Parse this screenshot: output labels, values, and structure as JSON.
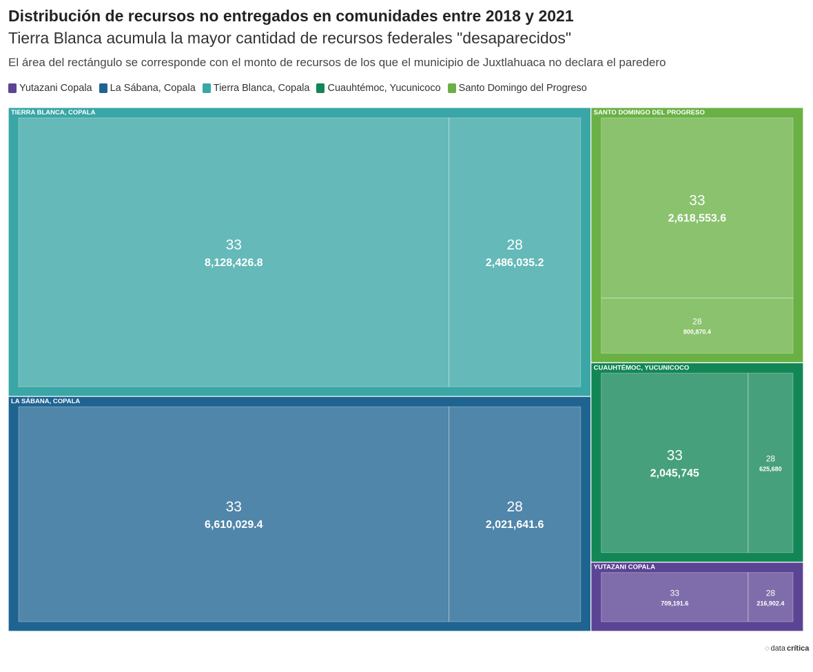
{
  "header": {
    "title": "Distribución de recursos no entregados en comunidades entre 2018 y 2021",
    "subtitle": "Tierra Blanca acumula la mayor cantidad de recursos federales \"desaparecidos\"",
    "description": "El área del rectángulo se corresponde con el monto de recursos de los que el municipio de Juxtlahuaca no declara el paredero"
  },
  "legend": [
    {
      "label": "Yutazani Copala",
      "color": "#5c4494"
    },
    {
      "label": "La Sábana, Copala",
      "color": "#1f6491"
    },
    {
      "label": "Tierra Blanca, Copala",
      "color": "#3aa6a6"
    },
    {
      "label": "Cuauhtémoc, Yucunicoco",
      "color": "#138656"
    },
    {
      "label": "Santo Domingo del Progreso",
      "color": "#6ab145"
    }
  ],
  "chart_data": {
    "type": "treemap",
    "groups": [
      {
        "name": "TIERRA BLANCA, COPALA",
        "color": "#3aa6a6",
        "items": [
          {
            "label": "33",
            "value": 8128426.8,
            "display": "8,128,426.8"
          },
          {
            "label": "28",
            "value": 2486035.2,
            "display": "2,486,035.2"
          }
        ]
      },
      {
        "name": "LA SÁBANA, COPALA",
        "color": "#1f6491",
        "items": [
          {
            "label": "33",
            "value": 6610029.4,
            "display": "6,610,029.4"
          },
          {
            "label": "28",
            "value": 2021641.6,
            "display": "2,021,641.6"
          }
        ]
      },
      {
        "name": "SANTO DOMINGO DEL PROGRESO",
        "color": "#6ab145",
        "items": [
          {
            "label": "33",
            "value": 2618553.6,
            "display": "2,618,553.6"
          },
          {
            "label": "28",
            "value": 800870.4,
            "display": "800,870.4"
          }
        ]
      },
      {
        "name": "CUAUHTÉMOC, YUCUNICOCO",
        "color": "#138656",
        "items": [
          {
            "label": "33",
            "value": 2045745,
            "display": "2,045,745"
          },
          {
            "label": "28",
            "value": 625680,
            "display": "625,680"
          }
        ]
      },
      {
        "name": "YUTAZANI COPALA",
        "color": "#5c4494",
        "items": [
          {
            "label": "33",
            "value": 709191.6,
            "display": "709,191.6"
          },
          {
            "label": "28",
            "value": 216902.4,
            "display": "216,902.4"
          }
        ]
      }
    ]
  },
  "branding": {
    "logo_text_light": "data",
    "logo_text_bold": "crítica"
  }
}
